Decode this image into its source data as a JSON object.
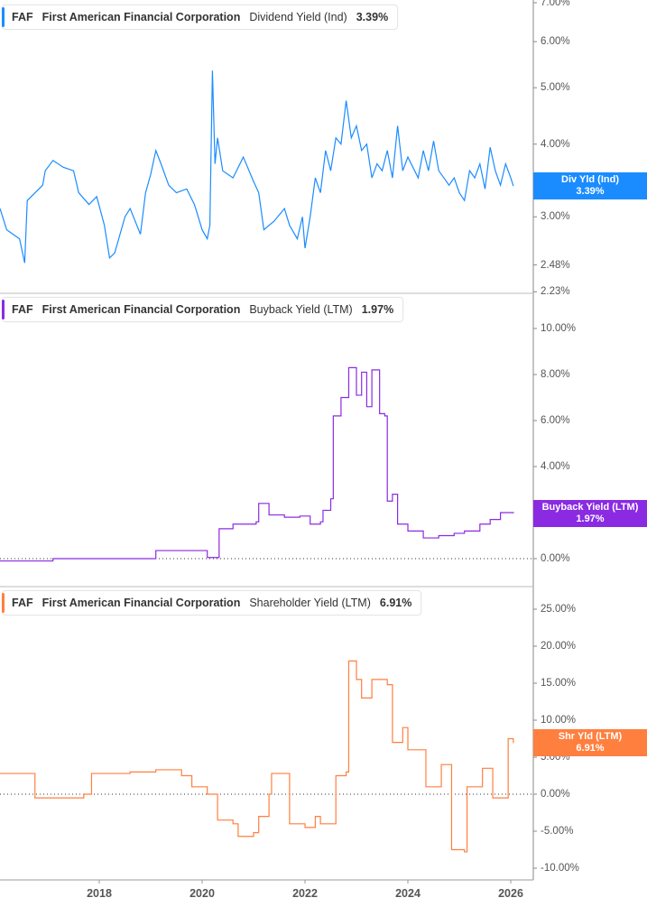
{
  "chart_data": [
    {
      "type": "line",
      "ticker": "FAF",
      "company": "First American Financial Corporation",
      "metric": "Dividend Yield (Ind)",
      "current": "3.39%",
      "tag_label": "Div Yld (Ind)",
      "color": "#1a8cff",
      "scale": "log",
      "ylim": [
        2.23,
        7.0
      ],
      "y_ticks": [
        "7.00%",
        "6.00%",
        "5.00%",
        "4.00%",
        "3.00%",
        "2.48%",
        "2.23%"
      ],
      "y_tick_values": [
        7,
        6,
        5,
        4,
        3,
        2.48,
        2.23
      ],
      "series": [
        {
          "x": [
            2016.07,
            2016.2,
            2016.45,
            2016.55,
            2016.6,
            2016.9,
            2016.95,
            2017.1,
            2017.3,
            2017.5,
            2017.6,
            2017.8,
            2017.95,
            2018.1,
            2018.2,
            2018.3,
            2018.5,
            2018.6,
            2018.8,
            2018.9,
            2019.0,
            2019.1,
            2019.2,
            2019.35,
            2019.5,
            2019.7,
            2019.85,
            2020.0,
            2020.1,
            2020.15,
            2020.2,
            2020.25,
            2020.3,
            2020.4,
            2020.6,
            2020.8,
            2021.0,
            2021.1,
            2021.2,
            2021.4,
            2021.6,
            2021.7,
            2021.85,
            2021.95,
            2022.0,
            2022.1,
            2022.2,
            2022.3,
            2022.4,
            2022.5,
            2022.6,
            2022.7,
            2022.8,
            2022.9,
            2023.0,
            2023.1,
            2023.2,
            2023.3,
            2023.4,
            2023.5,
            2023.6,
            2023.7,
            2023.8,
            2023.9,
            2024.0,
            2024.2,
            2024.3,
            2024.4,
            2024.5,
            2024.6,
            2024.7,
            2024.8,
            2024.9,
            2025.0,
            2025.1,
            2025.2,
            2025.3,
            2025.4,
            2025.5,
            2025.6,
            2025.7,
            2025.8,
            2025.9,
            2026.0,
            2026.05
          ],
          "y": [
            3.1,
            2.85,
            2.75,
            2.5,
            3.2,
            3.4,
            3.6,
            3.75,
            3.65,
            3.6,
            3.3,
            3.15,
            3.25,
            2.9,
            2.55,
            2.6,
            3.0,
            3.1,
            2.8,
            3.3,
            3.55,
            3.9,
            3.7,
            3.4,
            3.3,
            3.35,
            3.15,
            2.85,
            2.75,
            2.9,
            5.35,
            3.7,
            4.1,
            3.6,
            3.5,
            3.8,
            3.45,
            3.3,
            2.85,
            2.95,
            3.1,
            2.9,
            2.75,
            3.0,
            2.65,
            3.0,
            3.5,
            3.3,
            3.9,
            3.6,
            4.1,
            4.0,
            4.75,
            4.1,
            4.3,
            3.9,
            4.0,
            3.5,
            3.7,
            3.6,
            3.9,
            3.5,
            4.3,
            3.6,
            3.8,
            3.5,
            3.9,
            3.6,
            4.05,
            3.6,
            3.5,
            3.4,
            3.5,
            3.3,
            3.2,
            3.6,
            3.5,
            3.7,
            3.35,
            3.95,
            3.6,
            3.4,
            3.7,
            3.5,
            3.39
          ]
        }
      ]
    },
    {
      "type": "line",
      "ticker": "FAF",
      "company": "First American Financial Corporation",
      "metric": "Buyback Yield (LTM)",
      "current": "1.97%",
      "tag_label": "Buyback Yield (LTM)",
      "color": "#8a2be2",
      "scale": "linear",
      "ylim": [
        -0.5,
        10.5
      ],
      "y_ticks": [
        "10.00%",
        "8.00%",
        "6.00%",
        "4.00%",
        "0.00%"
      ],
      "y_tick_values": [
        10,
        8,
        6,
        4,
        0
      ],
      "series": [
        {
          "x": [
            2016.07,
            2017.1,
            2019.1,
            2020.1,
            2020.33,
            2020.6,
            2021.05,
            2021.1,
            2021.3,
            2021.6,
            2021.9,
            2022.1,
            2022.3,
            2022.35,
            2022.5,
            2022.55,
            2022.7,
            2022.85,
            2023.0,
            2023.1,
            2023.2,
            2023.3,
            2023.45,
            2023.55,
            2023.6,
            2023.7,
            2023.8,
            2024.0,
            2024.3,
            2024.6,
            2024.9,
            2025.1,
            2025.4,
            2025.6,
            2025.8,
            2026.05
          ],
          "y": [
            -0.1,
            0.0,
            0.35,
            0.05,
            1.3,
            1.5,
            1.6,
            2.4,
            1.9,
            1.8,
            1.85,
            1.5,
            1.6,
            2.1,
            2.6,
            6.2,
            7.0,
            8.3,
            7.1,
            8.1,
            6.6,
            8.2,
            6.3,
            6.2,
            2.5,
            2.8,
            1.5,
            1.2,
            0.9,
            1.0,
            1.1,
            1.2,
            1.5,
            1.7,
            2.0,
            1.97
          ]
        }
      ]
    },
    {
      "type": "line",
      "ticker": "FAF",
      "company": "First American Financial Corporation",
      "metric": "Shareholder Yield (LTM)",
      "current": "6.91%",
      "tag_label": "Shr Yld (LTM)",
      "color": "#ff7f3f",
      "scale": "linear",
      "ylim": [
        -11,
        26
      ],
      "y_ticks": [
        "25.00%",
        "20.00%",
        "15.00%",
        "10.00%",
        "5.00%",
        "0.00%",
        "-5.00%",
        "-10.00%"
      ],
      "y_tick_values": [
        25,
        20,
        15,
        10,
        5,
        0,
        -5,
        -10
      ],
      "series": [
        {
          "x": [
            2016.07,
            2016.75,
            2017.7,
            2017.85,
            2018.6,
            2019.1,
            2019.6,
            2019.8,
            2020.1,
            2020.3,
            2020.6,
            2020.7,
            2021.0,
            2021.1,
            2021.3,
            2021.35,
            2021.6,
            2021.7,
            2022.0,
            2022.2,
            2022.3,
            2022.6,
            2022.8,
            2022.85,
            2023.0,
            2023.1,
            2023.3,
            2023.6,
            2023.7,
            2023.9,
            2024.0,
            2024.3,
            2024.35,
            2024.6,
            2024.65,
            2024.8,
            2024.85,
            2025.1,
            2025.15,
            2025.4,
            2025.45,
            2025.6,
            2025.65,
            2025.9,
            2025.95,
            2026.05
          ],
          "y": [
            2.8,
            -0.5,
            0.0,
            2.8,
            3.0,
            3.3,
            2.5,
            1.0,
            0.0,
            -3.5,
            -4.0,
            -5.7,
            -5.2,
            -3.0,
            0.0,
            2.8,
            2.8,
            -4.0,
            -4.5,
            -3.0,
            -4.0,
            2.5,
            3.0,
            18.0,
            15.5,
            13.0,
            15.5,
            14.8,
            7.0,
            9.0,
            6.0,
            6.0,
            1.0,
            1.0,
            4.0,
            4.0,
            -7.5,
            -7.8,
            1.0,
            1.0,
            3.5,
            3.5,
            -0.5,
            -0.5,
            7.5,
            6.91
          ]
        }
      ]
    }
  ],
  "x_axis": {
    "ticks": [
      "2018",
      "2020",
      "2022",
      "2024",
      "2026"
    ],
    "tick_values": [
      2018,
      2020,
      2022,
      2024,
      2026
    ]
  }
}
